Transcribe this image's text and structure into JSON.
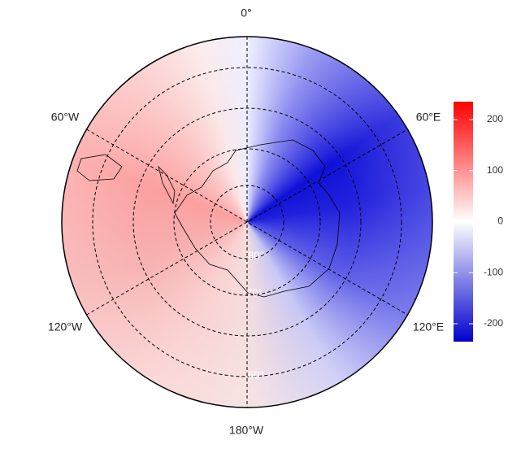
{
  "map": {
    "longitude_labels": [
      "0°",
      "60°E",
      "120°E",
      "180°W",
      "120°W",
      "60°W"
    ],
    "latitude_labels": [
      "80°",
      "70°",
      "60°"
    ],
    "colorbar": {
      "lim": [
        -235,
        235
      ],
      "ticks": [
        200,
        100,
        0,
        -100,
        -200
      ],
      "colors": [
        "#0000cc",
        "#ffffff",
        "#ff0000"
      ]
    }
  }
}
